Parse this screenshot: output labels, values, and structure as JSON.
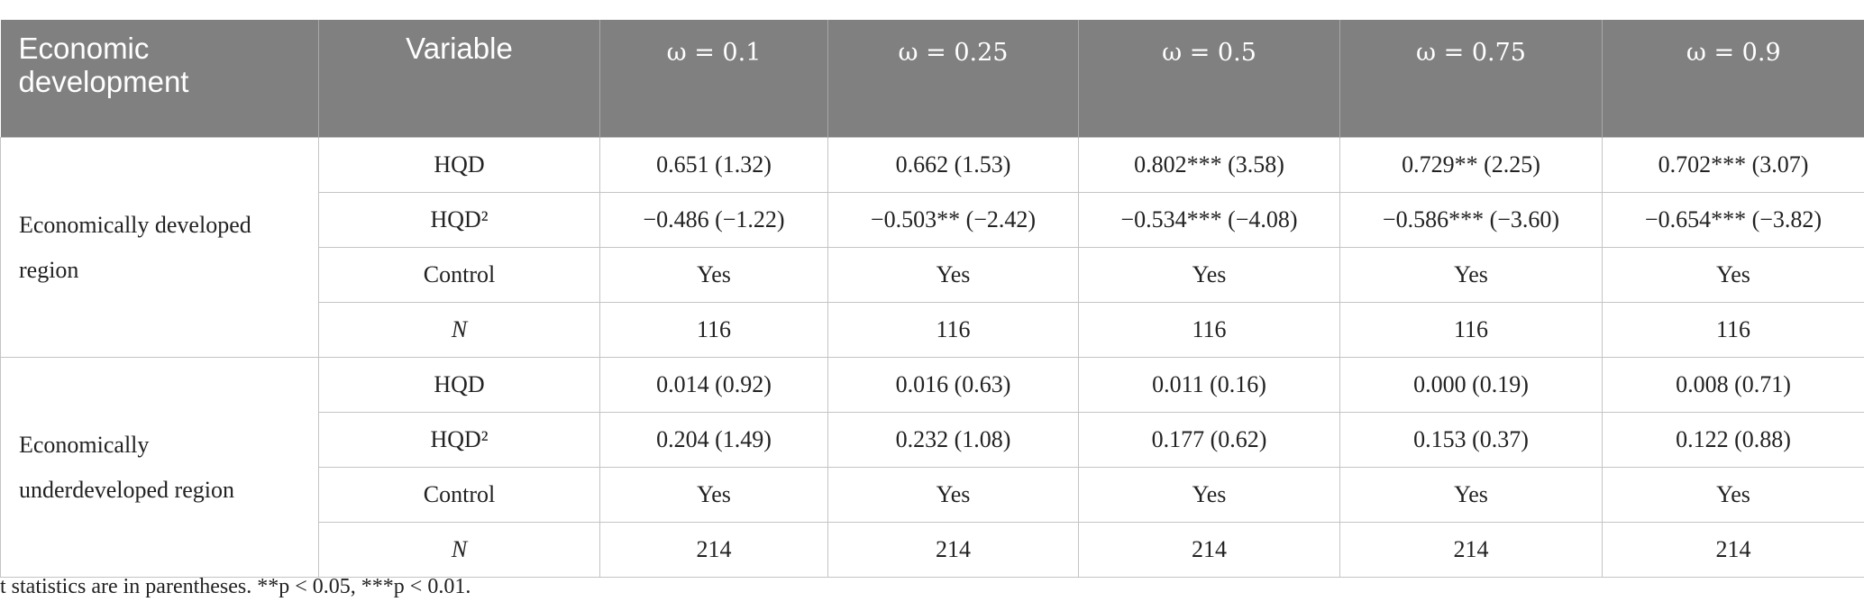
{
  "table": {
    "header": [
      "Economic development",
      "Variable",
      "ω = 0.1",
      "ω = 0.25",
      "ω = 0.5",
      "ω = 0.75",
      "ω = 0.9"
    ],
    "groups": [
      {
        "label": "Economically developed region",
        "rows": [
          [
            "HQD",
            "0.651 (1.32)",
            "0.662 (1.53)",
            "0.802*** (3.58)",
            "0.729** (2.25)",
            "0.702*** (3.07)"
          ],
          [
            "HQD²",
            "−0.486 (−1.22)",
            "−0.503** (−2.42)",
            "−0.534*** (−4.08)",
            "−0.586*** (−3.60)",
            "−0.654*** (−3.82)"
          ],
          [
            "Control",
            "Yes",
            "Yes",
            "Yes",
            "Yes",
            "Yes"
          ],
          [
            "N",
            "116",
            "116",
            "116",
            "116",
            "116"
          ]
        ]
      },
      {
        "label": "Economically underdeveloped region",
        "rows": [
          [
            "HQD",
            "0.014 (0.92)",
            "0.016 (0.63)",
            "0.011 (0.16)",
            "0.000 (0.19)",
            "0.008 (0.71)"
          ],
          [
            "HQD²",
            "0.204 (1.49)",
            "0.232 (1.08)",
            "0.177 (0.62)",
            "0.153 (0.37)",
            "0.122 (0.88)"
          ],
          [
            "Control",
            "Yes",
            "Yes",
            "Yes",
            "Yes",
            "Yes"
          ],
          [
            "N",
            "214",
            "214",
            "214",
            "214",
            "214"
          ]
        ]
      }
    ],
    "footnote": "t statistics are in parentheses. **p < 0.05, ***p < 0.01."
  }
}
